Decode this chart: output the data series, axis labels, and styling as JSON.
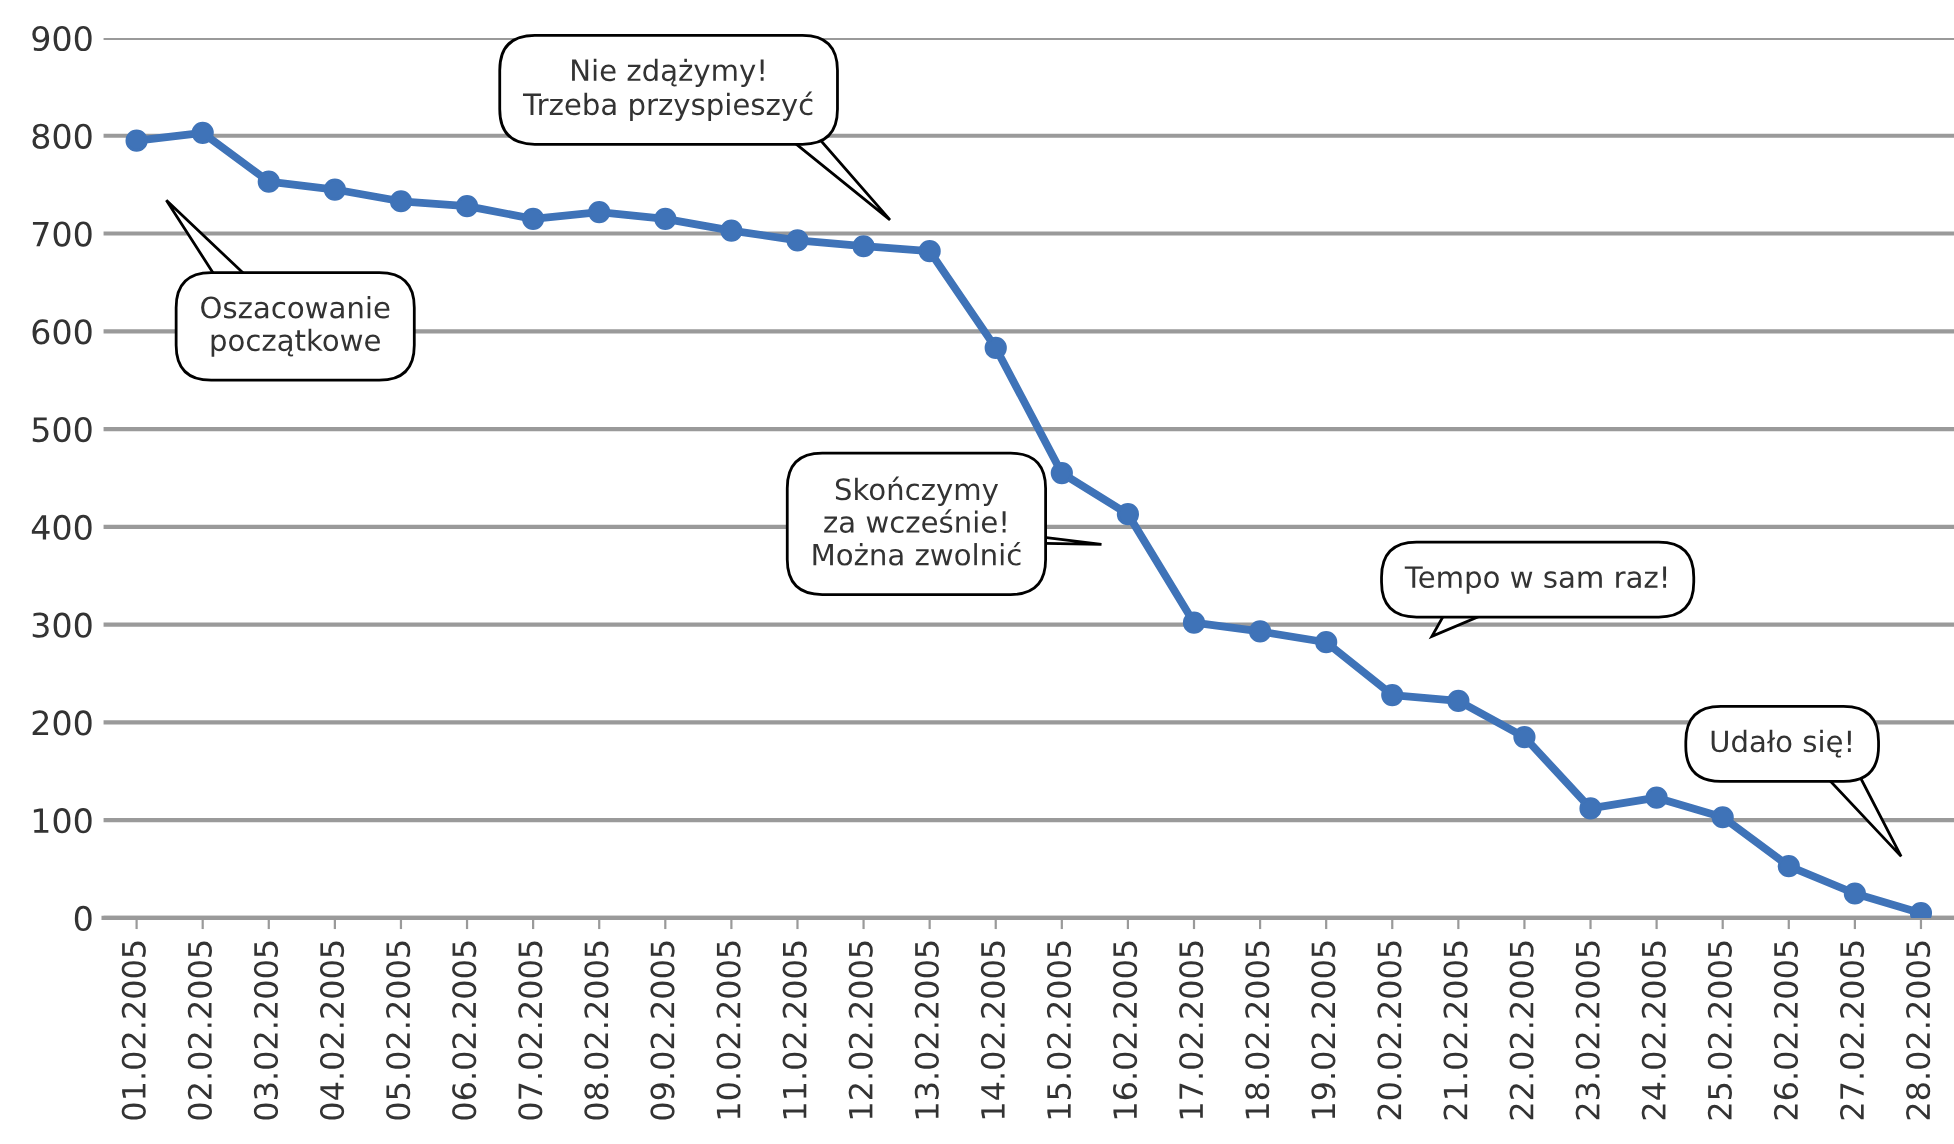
{
  "chart_data": {
    "type": "line",
    "categories": [
      "01.02.2005",
      "02.02.2005",
      "03.02.2005",
      "04.02.2005",
      "05.02.2005",
      "06.02.2005",
      "07.02.2005",
      "08.02.2005",
      "09.02.2005",
      "10.02.2005",
      "11.02.2005",
      "12.02.2005",
      "13.02.2005",
      "14.02.2005",
      "15.02.2005",
      "16.02.2005",
      "17.02.2005",
      "18.02.2005",
      "19.02.2005",
      "20.02.2005",
      "21.02.2005",
      "22.02.2005",
      "23.02.2005",
      "24.02.2005",
      "25.02.2005",
      "26.02.2005",
      "27.02.2005",
      "28.02.2005"
    ],
    "series": [
      {
        "color": "#3f73b8",
        "values": [
          795,
          803,
          753,
          745,
          733,
          728,
          715,
          722,
          715,
          703,
          693,
          687,
          682,
          583,
          455,
          413,
          302,
          293,
          282,
          228,
          222,
          185,
          112,
          123,
          103,
          53,
          25,
          5
        ]
      }
    ],
    "ylim": [
      0,
      900
    ],
    "yticks": [
      0,
      100,
      200,
      300,
      400,
      500,
      600,
      700,
      800,
      900
    ],
    "grid": "y",
    "marker": "circle",
    "line_style": "solid",
    "legend": false,
    "annotations": [
      "Oszacowanie\npoczątkowe",
      "Nie zdążymy!\nTrzeba przyspieszyć",
      "Skończymy\nza wcześnie!\nMożna zwolnić",
      "Tempo w sam raz!",
      "Udało się!"
    ]
  }
}
